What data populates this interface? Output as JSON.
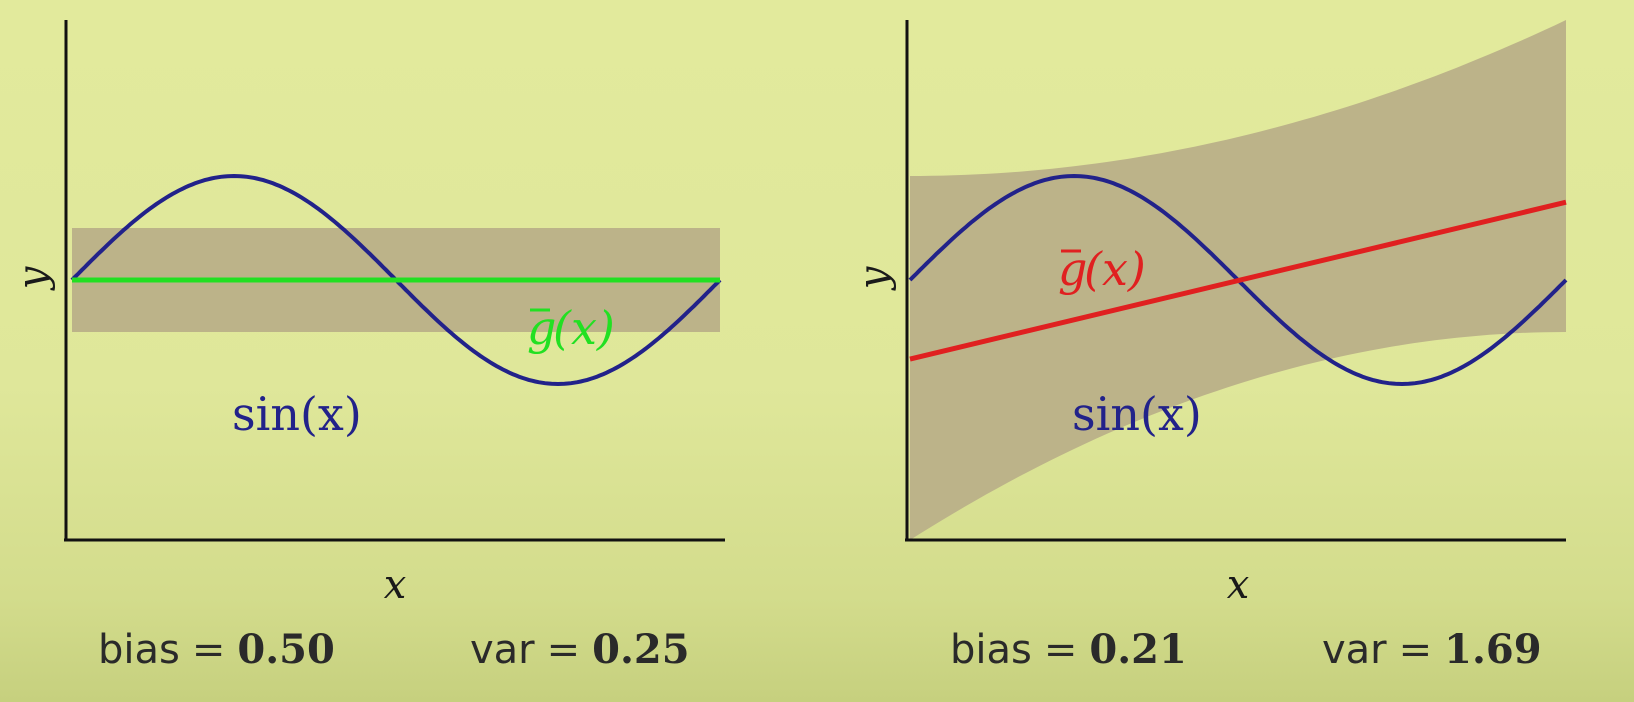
{
  "chart_data": [
    {
      "type": "line",
      "xlabel": "x",
      "ylabel": "y",
      "xlim": [
        0,
        6.2832
      ],
      "ylim": [
        -2.5,
        2.5
      ],
      "grid": false,
      "series": [
        {
          "name": "sin(x)",
          "kind": "function",
          "func": "sin",
          "color": "#22228a"
        },
        {
          "name": "ḡ(x)",
          "kind": "line",
          "slope": 0,
          "intercept": 0,
          "color": "#22e022"
        }
      ],
      "band": {
        "color": "#bcb389",
        "lower_at_start": -0.5,
        "upper_at_start": 0.5,
        "lower_at_end": -0.5,
        "upper_at_end": 0.5
      },
      "labels": {
        "target": "sin(x)",
        "fit_bar": "g",
        "fit_rest": "(x)"
      },
      "bias_label": "bias",
      "bias_value": "0.50",
      "var_label": "var",
      "var_value": "0.25",
      "equals": "="
    },
    {
      "type": "line",
      "xlabel": "x",
      "ylabel": "y",
      "xlim": [
        0,
        6.2832
      ],
      "ylim": [
        -2.5,
        2.5
      ],
      "grid": false,
      "series": [
        {
          "name": "sin(x)",
          "kind": "function",
          "func": "sin",
          "color": "#22228a"
        },
        {
          "name": "ḡ(x)",
          "kind": "line",
          "slope": 0.24,
          "intercept": -0.76,
          "color": "#e02020"
        }
      ],
      "band": {
        "color": "#bcb389",
        "lower_at_start": -2.5,
        "upper_at_start": 1.0,
        "lower_at_end": -0.5,
        "upper_at_end": 2.5
      },
      "labels": {
        "target": "sin(x)",
        "fit_bar": "g",
        "fit_rest": "(x)"
      },
      "bias_label": "bias",
      "bias_value": "0.21",
      "var_label": "var",
      "var_value": "1.69",
      "equals": "="
    }
  ]
}
